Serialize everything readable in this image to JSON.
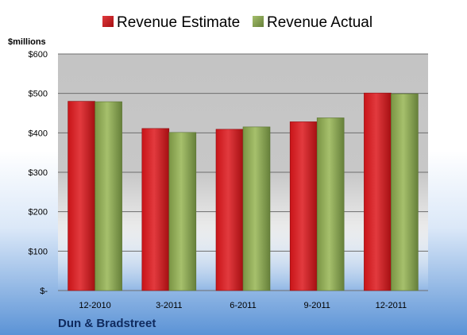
{
  "chart_data": {
    "type": "bar",
    "title": "",
    "xlabel": "",
    "ylabel": "$millions",
    "categories": [
      "12-2010",
      "3-2011",
      "6-2011",
      "9-2011",
      "12-2011"
    ],
    "series": [
      {
        "name": "Revenue Estimate",
        "color": "#c0161a",
        "values": [
          480,
          411,
          409,
          428,
          501
        ]
      },
      {
        "name": "Revenue Actual",
        "color": "#7f9a48",
        "values": [
          479,
          401,
          415,
          438,
          499
        ]
      }
    ],
    "ylim": [
      0,
      600
    ],
    "yticks": [
      0,
      100,
      200,
      300,
      400,
      500,
      600
    ],
    "ytick_labels": [
      "$-",
      "$100",
      "$200",
      "$300",
      "$400",
      "$500",
      "$600"
    ],
    "grid": true,
    "legend": "top-center",
    "footer": "Dun & Bradstreet"
  }
}
